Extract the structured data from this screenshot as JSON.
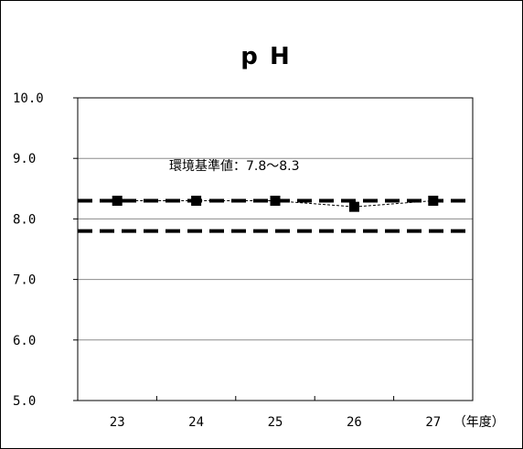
{
  "chart_data": {
    "type": "line",
    "title": "p H",
    "xlabel": "",
    "ylabel": "",
    "x_unit_label": "（年度）",
    "categories": [
      "23",
      "24",
      "25",
      "26",
      "27"
    ],
    "y_tick_labels": [
      "5.0",
      "6.0",
      "7.0",
      "8.0",
      "9.0",
      "10.0"
    ],
    "ylim": [
      5.0,
      10.0
    ],
    "grid": true,
    "series": [
      {
        "values": [
          8.3,
          8.3,
          8.3,
          8.2,
          8.3
        ],
        "color": "#000000",
        "marker": "square",
        "line_style": "dashed-thin"
      }
    ],
    "reference_lines": [
      {
        "value": 8.3,
        "style": "dashed-thick"
      },
      {
        "value": 7.8,
        "style": "dashed-thick"
      }
    ],
    "annotation": "環境基準値：7.8～8.3",
    "legend": "none"
  }
}
